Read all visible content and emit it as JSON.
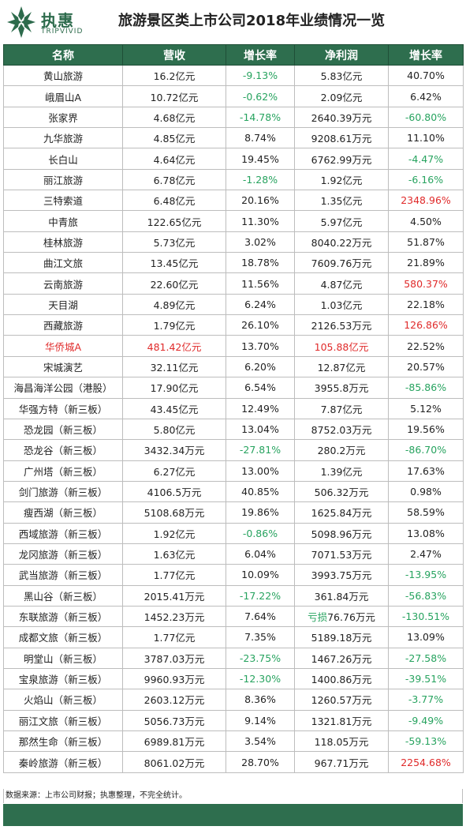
{
  "brand": {
    "name_cn": "执惠",
    "name_en": "TRIPVIVID",
    "color": "#2d6b4c"
  },
  "title": "旅游景区类上市公司2018年业绩情况一览",
  "columns": [
    "名称",
    "营收",
    "增长率",
    "净利润",
    "增长率"
  ],
  "colors": {
    "header_bg": "#2e6e4e",
    "positive_highlight": "#e02a2a",
    "negative": "#27a35f"
  },
  "rows": [
    {
      "name": "黄山旅游",
      "revenue": "16.2亿元",
      "rev_growth": "-9.13%",
      "rev_growth_color": "green",
      "profit": "5.83亿元",
      "profit_growth": "40.70%"
    },
    {
      "name": "峨眉山A",
      "revenue": "10.72亿元",
      "rev_growth": "-0.62%",
      "rev_growth_color": "green",
      "profit": "2.09亿元",
      "profit_growth": "6.42%"
    },
    {
      "name": "张家界",
      "revenue": "4.68亿元",
      "rev_growth": "-14.78%",
      "rev_growth_color": "green",
      "profit": "2640.39万元",
      "profit_growth": "-60.80%",
      "profit_growth_color": "green"
    },
    {
      "name": "九华旅游",
      "revenue": "4.85亿元",
      "rev_growth": "8.74%",
      "profit": "9208.61万元",
      "profit_growth": "11.10%"
    },
    {
      "name": "长白山",
      "revenue": "4.64亿元",
      "rev_growth": "19.45%",
      "profit": "6762.99万元",
      "profit_growth": "-4.47%",
      "profit_growth_color": "green"
    },
    {
      "name": "丽江旅游",
      "revenue": "6.78亿元",
      "rev_growth": "-1.28%",
      "rev_growth_color": "green",
      "profit": "1.92亿元",
      "profit_growth": "-6.16%",
      "profit_growth_color": "green"
    },
    {
      "name": "三特索道",
      "revenue": "6.48亿元",
      "rev_growth": "20.16%",
      "profit": "1.35亿元",
      "profit_growth": "2348.96%",
      "profit_growth_color": "red"
    },
    {
      "name": "中青旅",
      "revenue": "122.65亿元",
      "rev_growth": "11.30%",
      "profit": "5.97亿元",
      "profit_growth": "4.50%"
    },
    {
      "name": "桂林旅游",
      "revenue": "5.73亿元",
      "rev_growth": "3.02%",
      "profit": "8040.22万元",
      "profit_growth": "51.87%"
    },
    {
      "name": "曲江文旅",
      "revenue": "13.45亿元",
      "rev_growth": "18.78%",
      "profit": "7609.76万元",
      "profit_growth": "21.89%"
    },
    {
      "name": "云南旅游",
      "revenue": "22.60亿元",
      "rev_growth": "11.56%",
      "profit": "4.87亿元",
      "profit_growth": "580.37%",
      "profit_growth_color": "red"
    },
    {
      "name": "天目湖",
      "revenue": "4.89亿元",
      "rev_growth": "6.24%",
      "profit": "1.03亿元",
      "profit_growth": "22.18%"
    },
    {
      "name": "西藏旅游",
      "revenue": "1.79亿元",
      "rev_growth": "26.10%",
      "profit": "2126.53万元",
      "profit_growth": "126.86%",
      "profit_growth_color": "red"
    },
    {
      "name": "华侨城A",
      "name_color": "red",
      "revenue": "481.42亿元",
      "revenue_color": "red",
      "rev_growth": "13.70%",
      "profit": "105.88亿元",
      "profit_color": "red",
      "profit_growth": "22.52%"
    },
    {
      "name": "宋城演艺",
      "revenue": "32.11亿元",
      "rev_growth": "6.20%",
      "profit": "12.87亿元",
      "profit_growth": "20.57%"
    },
    {
      "name": "海昌海洋公园（港股）",
      "revenue": "17.90亿元",
      "rev_growth": "6.54%",
      "profit": "3955.8万元",
      "profit_growth": "-85.86%",
      "profit_growth_color": "green"
    },
    {
      "name": "华强方特（新三板）",
      "revenue": "43.45亿元",
      "rev_growth": "12.49%",
      "profit": "7.87亿元",
      "profit_growth": "5.12%"
    },
    {
      "name": "恐龙园（新三板）",
      "revenue": "5.80亿元",
      "rev_growth": "13.04%",
      "profit": "8752.03万元",
      "profit_growth": "19.56%"
    },
    {
      "name": "恐龙谷（新三板）",
      "revenue": "3432.34万元",
      "rev_growth": "-27.81%",
      "rev_growth_color": "green",
      "profit": "280.2万元",
      "profit_growth": "-86.70%",
      "profit_growth_color": "green"
    },
    {
      "name": "广州塔（新三板）",
      "revenue": "6.27亿元",
      "rev_growth": "13.00%",
      "profit": "1.39亿元",
      "profit_growth": "17.63%"
    },
    {
      "name": "剑门旅游（新三板）",
      "revenue": "4106.5万元",
      "rev_growth": "40.85%",
      "profit": "506.32万元",
      "profit_growth": "0.98%"
    },
    {
      "name": "瘦西湖（新三板）",
      "revenue": "5108.68万元",
      "rev_growth": "19.86%",
      "profit": "1625.84万元",
      "profit_growth": "58.59%"
    },
    {
      "name": "西域旅游（新三板）",
      "revenue": "1.92亿元",
      "rev_growth": "-0.86%",
      "rev_growth_color": "green",
      "profit": "5098.96万元",
      "profit_growth": "13.08%"
    },
    {
      "name": "龙冈旅游（新三板）",
      "revenue": "1.63亿元",
      "rev_growth": "6.04%",
      "profit": "7071.53万元",
      "profit_growth": "2.47%"
    },
    {
      "name": "武当旅游（新三板）",
      "revenue": "1.77亿元",
      "rev_growth": "10.09%",
      "profit": "3993.75万元",
      "profit_growth": "-13.95%",
      "profit_growth_color": "green"
    },
    {
      "name": "黑山谷（新三板）",
      "revenue": "2015.41万元",
      "rev_growth": "-17.22%",
      "rev_growth_color": "green",
      "profit": "361.84万元",
      "profit_growth": "-56.83%",
      "profit_growth_color": "green"
    },
    {
      "name": "东联旅游（新三板）",
      "revenue": "1452.23万元",
      "rev_growth": "7.64%",
      "profit_prefix": "亏损",
      "profit": "76.76万元",
      "profit_growth": "-130.51%",
      "profit_growth_color": "green"
    },
    {
      "name": "成都文旅（新三板）",
      "revenue": "1.77亿元",
      "rev_growth": "7.35%",
      "profit": "5189.18万元",
      "profit_growth": "13.09%"
    },
    {
      "name": "明堂山（新三板）",
      "revenue": "3787.03万元",
      "rev_growth": "-23.75%",
      "rev_growth_color": "green",
      "profit": "1467.26万元",
      "profit_growth": "-27.58%",
      "profit_growth_color": "green"
    },
    {
      "name": "宝泉旅游（新三板）",
      "revenue": "9960.93万元",
      "rev_growth": "-12.30%",
      "rev_growth_color": "green",
      "profit": "1400.86万元",
      "profit_growth": "-39.51%",
      "profit_growth_color": "green"
    },
    {
      "name": "火焰山（新三板）",
      "revenue": "2603.12万元",
      "rev_growth": "8.36%",
      "profit": "1260.57万元",
      "profit_growth": "-3.77%",
      "profit_growth_color": "green"
    },
    {
      "name": "丽江文旅（新三板）",
      "revenue": "5056.73万元",
      "rev_growth": "9.14%",
      "profit": "1321.81万元",
      "profit_growth": "-9.49%",
      "profit_growth_color": "green"
    },
    {
      "name": "那然生命（新三板）",
      "revenue": "6989.81万元",
      "rev_growth": "3.54%",
      "profit": "118.05万元",
      "profit_growth": "-59.13%",
      "profit_growth_color": "green"
    },
    {
      "name": "秦岭旅游（新三板）",
      "revenue": "8061.02万元",
      "rev_growth": "28.70%",
      "profit": "967.71万元",
      "profit_growth": "2254.68%",
      "profit_growth_color": "red"
    }
  ],
  "footer": "数据来源：上市公司财报；执惠整理，不完全统计。"
}
